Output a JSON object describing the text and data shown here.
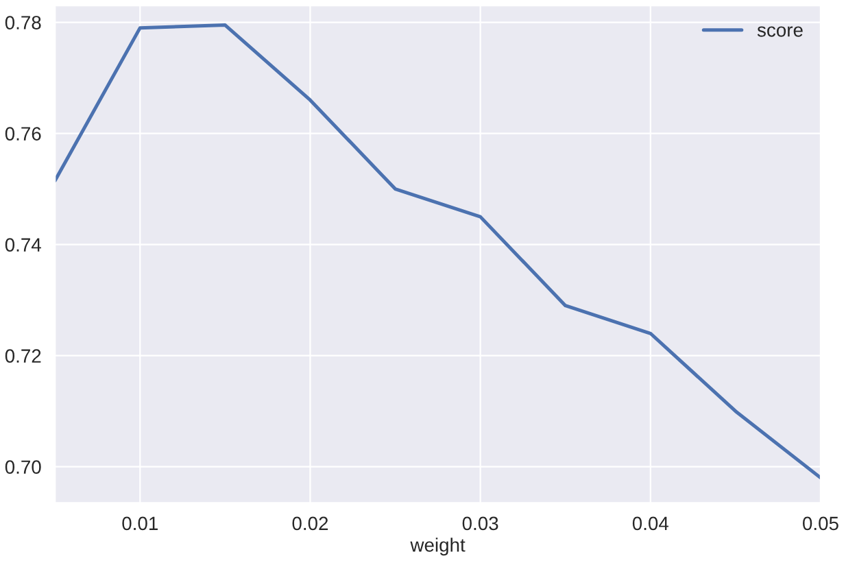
{
  "chart_data": {
    "type": "line",
    "xlabel": "weight",
    "x": [
      0.005,
      0.01,
      0.015,
      0.02,
      0.025,
      0.03,
      0.035,
      0.04,
      0.045,
      0.05
    ],
    "series": [
      {
        "name": "score",
        "color": "#4c72b0",
        "values": [
          0.7515,
          0.779,
          0.7795,
          0.766,
          0.75,
          0.745,
          0.729,
          0.724,
          0.71,
          0.698
        ]
      }
    ],
    "xlim": [
      0.005,
      0.05
    ],
    "xticks": [
      {
        "value": 0.01,
        "label": "0.01"
      },
      {
        "value": 0.02,
        "label": "0.02"
      },
      {
        "value": 0.03,
        "label": "0.03"
      },
      {
        "value": 0.04,
        "label": "0.04"
      },
      {
        "value": 0.05,
        "label": "0.05"
      }
    ],
    "ylim": [
      0.6935,
      0.783
    ],
    "yticks": [
      {
        "value": 0.7,
        "label": "0.70"
      },
      {
        "value": 0.72,
        "label": "0.72"
      },
      {
        "value": 0.74,
        "label": "0.74"
      },
      {
        "value": 0.76,
        "label": "0.76"
      },
      {
        "value": 0.78,
        "label": "0.78"
      }
    ],
    "grid": true,
    "legend": "top right"
  }
}
